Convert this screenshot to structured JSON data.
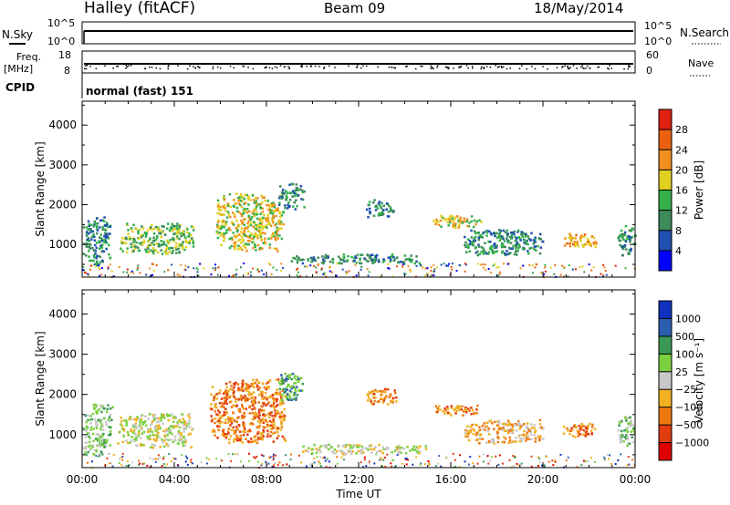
{
  "header": {
    "station": "Halley (fitACF)",
    "beam": "Beam 09",
    "date": "18/May/2014"
  },
  "status_panels": {
    "nsky_label": "N.Sky",
    "nsearch_label": "N.Search",
    "left_top": "10^5",
    "left_bottom": "10^0",
    "right_top": "10^5",
    "right_bottom": "10^0",
    "freq_label": "Freq.",
    "freq_unit": "[MHz]",
    "freq_top": "18",
    "freq_bottom": "8",
    "nave_label": "Nave",
    "nave_top": "60",
    "nave_bottom": "0",
    "cpid_label": "CPID",
    "cpid_value": "normal (fast) 151"
  },
  "chart_data": [
    {
      "type": "heatmap",
      "name": "power",
      "ylabel": "Slant Range [km]",
      "yticks": [
        1000,
        2000,
        3000,
        4000
      ],
      "ylim": [
        180,
        4600
      ],
      "xlim": [
        0,
        24
      ],
      "colorbar_label": "Power [dB]",
      "colorbar_ticks": [
        "4",
        "8",
        "12",
        "16",
        "20",
        "24",
        "28"
      ],
      "colors": [
        "#0000ff",
        "#1f4fb0",
        "#3d8a5a",
        "#33b04a",
        "#e0d020",
        "#f09020",
        "#e86010",
        "#e02010"
      ],
      "regions": [
        {
          "t0": 0.0,
          "t1": 1.2,
          "r0": 500,
          "r1": 1750,
          "level": 2
        },
        {
          "t0": 1.6,
          "t1": 4.8,
          "r0": 750,
          "r1": 1550,
          "level": 3
        },
        {
          "t0": 5.8,
          "t1": 8.7,
          "r0": 850,
          "r1": 2300,
          "level": 4
        },
        {
          "t0": 8.5,
          "t1": 9.6,
          "r0": 1900,
          "r1": 2550,
          "level": 2
        },
        {
          "t0": 9.0,
          "t1": 15.0,
          "r0": 550,
          "r1": 780,
          "level": 2
        },
        {
          "t0": 12.3,
          "t1": 13.5,
          "r0": 1700,
          "r1": 2150,
          "level": 2
        },
        {
          "t0": 15.2,
          "t1": 17.3,
          "r0": 1450,
          "r1": 1750,
          "level": 4
        },
        {
          "t0": 16.5,
          "t1": 20.0,
          "r0": 750,
          "r1": 1400,
          "level": 2
        },
        {
          "t0": 20.8,
          "t1": 22.3,
          "r0": 950,
          "r1": 1300,
          "level": 5
        },
        {
          "t0": 23.2,
          "t1": 24.0,
          "r0": 750,
          "r1": 1500,
          "level": 2
        }
      ]
    },
    {
      "type": "heatmap",
      "name": "velocity",
      "ylabel": "Slant Range [km]",
      "yticks": [
        1000,
        2000,
        3000,
        4000
      ],
      "ylim": [
        180,
        4600
      ],
      "xlim": [
        0,
        24
      ],
      "xticks": [
        "00:00",
        "04:00",
        "08:00",
        "12:00",
        "16:00",
        "20:00",
        "00:00"
      ],
      "xlabel": "Time UT",
      "colorbar_label": "Velocity [m s⁻¹]",
      "colorbar_ticks": [
        "1000",
        "500",
        "100",
        "25",
        "−25",
        "−100",
        "−500",
        "−1000"
      ],
      "colors": [
        "#1030c0",
        "#2a5fb0",
        "#3a9a55",
        "#7cd040",
        "#c8c8c8",
        "#f0b020",
        "#f07810",
        "#e03c10",
        "#e00000"
      ],
      "regions": [
        {
          "t0": 0.0,
          "t1": 1.3,
          "r0": 500,
          "r1": 1800,
          "level": 3
        },
        {
          "t0": 1.5,
          "t1": 4.8,
          "r0": 700,
          "r1": 1550,
          "level": 4
        },
        {
          "t0": 5.5,
          "t1": 8.8,
          "r0": 800,
          "r1": 2400,
          "level": 6
        },
        {
          "t0": 8.5,
          "t1": 9.6,
          "r0": 1850,
          "r1": 2550,
          "level": 2
        },
        {
          "t0": 9.5,
          "t1": 15.0,
          "r0": 550,
          "r1": 780,
          "level": 4
        },
        {
          "t0": 12.3,
          "t1": 13.6,
          "r0": 1750,
          "r1": 2200,
          "level": 6
        },
        {
          "t0": 15.2,
          "t1": 17.3,
          "r0": 1500,
          "r1": 1750,
          "level": 6
        },
        {
          "t0": 16.5,
          "t1": 20.0,
          "r0": 800,
          "r1": 1400,
          "level": 5
        },
        {
          "t0": 20.8,
          "t1": 22.3,
          "r0": 950,
          "r1": 1300,
          "level": 6
        },
        {
          "t0": 23.2,
          "t1": 24.0,
          "r0": 750,
          "r1": 1500,
          "level": 3
        }
      ]
    }
  ]
}
